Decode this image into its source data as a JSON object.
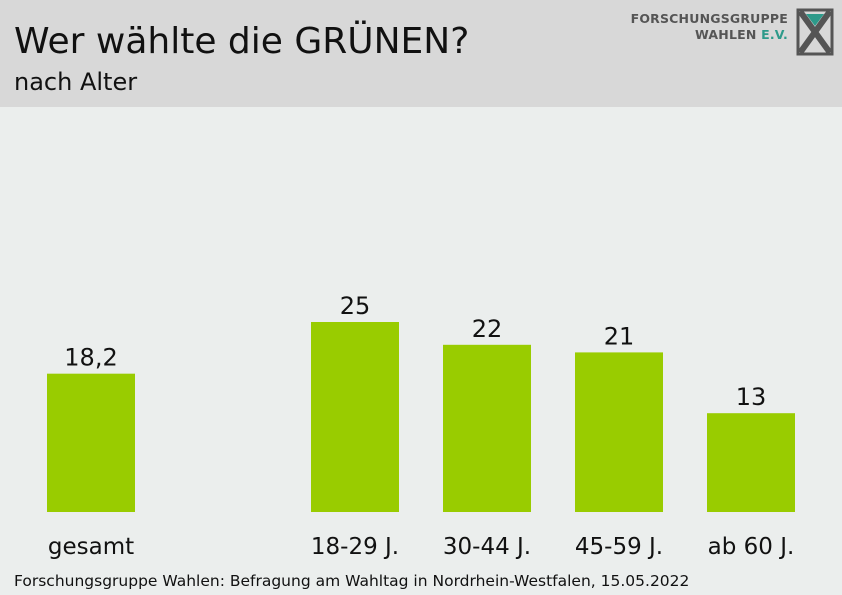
{
  "header": {
    "title": "Wer wählte die GRÜNEN?",
    "subtitle": "nach Alter"
  },
  "logo": {
    "line1": "FORSCHUNGSGRUPPE",
    "line2_main": "WAHLEN",
    "line2_accent": "E.V.",
    "icon": "x-box-logo-icon",
    "accent_color": "#2d9a8a"
  },
  "footer": {
    "source": "Forschungsgruppe Wahlen: Befragung am Wahltag in Nordrhein-Westfalen, 15.05.2022"
  },
  "chart_data": {
    "type": "bar",
    "title": "Wer wählte die GRÜNEN?",
    "subtitle": "nach Alter",
    "categories": [
      "gesamt",
      "18-29 J.",
      "30-44 J.",
      "45-59 J.",
      "ab 60 J."
    ],
    "values": [
      18.2,
      25,
      22,
      21,
      13
    ],
    "value_labels": [
      "18,2",
      "25",
      "22",
      "21",
      "13"
    ],
    "bar_color": "#99cc00",
    "ylim": [
      0,
      40
    ],
    "grid": false,
    "legend": "none"
  }
}
